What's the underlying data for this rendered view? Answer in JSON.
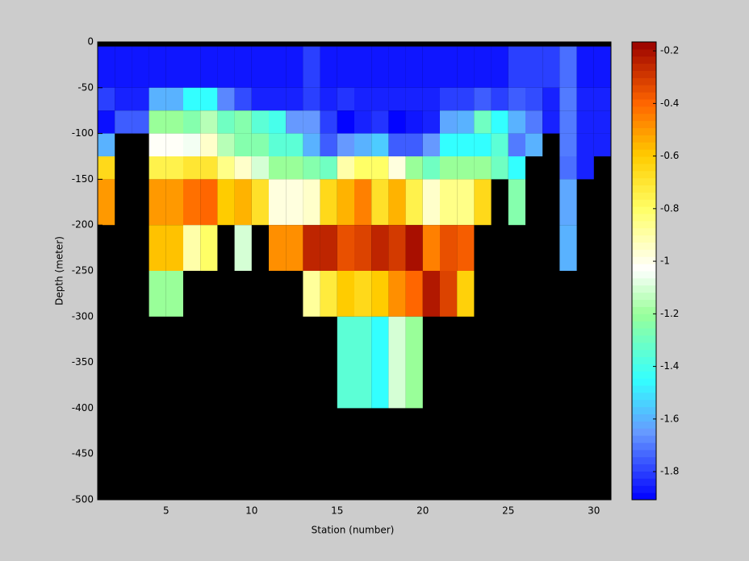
{
  "chart_data": {
    "type": "pcolor",
    "xlabel": "Station (number)",
    "ylabel": "Depth (meter)",
    "x": [
      1,
      2,
      3,
      4,
      5,
      6,
      7,
      8,
      9,
      10,
      11,
      12,
      13,
      14,
      15,
      16,
      17,
      18,
      19,
      20,
      21,
      22,
      23,
      24,
      25,
      26,
      27,
      28,
      29,
      30,
      31
    ],
    "y": [
      0,
      -5,
      -50,
      -75,
      -100,
      -125,
      -150,
      -200,
      -250,
      -300,
      -400,
      -500
    ],
    "values": [
      [
        null,
        null,
        null,
        null,
        null,
        null,
        null,
        null,
        null,
        null,
        null,
        null,
        null,
        null,
        null,
        null,
        null,
        null,
        null,
        null,
        null,
        null,
        null,
        null,
        null,
        null,
        null,
        null,
        null,
        null
      ],
      [
        -1.87,
        -1.87,
        -1.87,
        -1.87,
        -1.87,
        -1.87,
        -1.87,
        -1.87,
        -1.87,
        -1.87,
        -1.87,
        -1.87,
        -1.8,
        -1.87,
        -1.87,
        -1.87,
        -1.87,
        -1.87,
        -1.87,
        -1.87,
        -1.87,
        -1.87,
        -1.87,
        -1.87,
        -1.8,
        -1.8,
        -1.8,
        -1.72,
        -1.87,
        -1.87
      ],
      [
        -1.8,
        -1.85,
        -1.85,
        -1.6,
        -1.6,
        -1.45,
        -1.45,
        -1.68,
        -1.78,
        -1.85,
        -1.85,
        -1.85,
        -1.8,
        -1.85,
        -1.82,
        -1.85,
        -1.85,
        -1.85,
        -1.85,
        -1.85,
        -1.8,
        -1.8,
        -1.75,
        -1.8,
        -1.75,
        -1.78,
        -1.85,
        -1.7,
        -1.85,
        -1.85
      ],
      [
        -1.88,
        -1.75,
        -1.75,
        -1.2,
        -1.2,
        -1.25,
        -1.15,
        -1.3,
        -1.25,
        -1.35,
        -1.4,
        -1.65,
        -1.65,
        -1.8,
        -1.9,
        -1.85,
        -1.82,
        -1.9,
        -1.87,
        -1.85,
        -1.62,
        -1.6,
        -1.3,
        -1.45,
        -1.6,
        -1.7,
        -1.85,
        -1.7,
        -1.85,
        -1.85
      ],
      [
        -1.6,
        null,
        null,
        -1.02,
        -1.02,
        -1.05,
        -0.95,
        -1.15,
        -1.25,
        -1.25,
        -1.35,
        -1.35,
        -1.6,
        -1.75,
        -1.65,
        -1.6,
        -1.55,
        -1.75,
        -1.75,
        -1.65,
        -1.45,
        -1.45,
        -1.45,
        -1.35,
        -1.7,
        -1.6,
        null,
        -1.7,
        -1.85,
        -1.85
      ],
      [
        -0.65,
        null,
        null,
        -0.75,
        -0.75,
        -0.7,
        -0.7,
        -0.85,
        -0.95,
        -1.1,
        -1.2,
        -1.2,
        -1.25,
        -1.3,
        -0.9,
        -0.8,
        -0.8,
        -0.98,
        -1.2,
        -1.3,
        -1.2,
        -1.2,
        -1.2,
        -1.3,
        -1.45,
        null,
        null,
        -1.72,
        -1.85,
        null
      ],
      [
        -0.5,
        null,
        null,
        -0.5,
        -0.5,
        -0.42,
        -0.4,
        -0.6,
        -0.55,
        -0.68,
        -0.98,
        -0.98,
        -0.95,
        -0.65,
        -0.55,
        -0.45,
        -0.68,
        -0.55,
        -0.75,
        -0.95,
        -0.85,
        -0.85,
        -0.65,
        null,
        -1.25,
        null,
        null,
        -1.62,
        null,
        null
      ],
      [
        null,
        null,
        null,
        -0.58,
        -0.58,
        -0.9,
        -0.8,
        null,
        -1.1,
        null,
        -0.48,
        -0.48,
        -0.25,
        -0.25,
        -0.35,
        -0.32,
        -0.25,
        -0.3,
        -0.2,
        -0.45,
        -0.35,
        -0.38,
        null,
        null,
        null,
        null,
        null,
        -1.6,
        null,
        null
      ],
      [
        null,
        null,
        null,
        -1.2,
        -1.2,
        null,
        null,
        null,
        null,
        null,
        null,
        null,
        -0.88,
        -0.72,
        -0.6,
        -0.65,
        -0.6,
        -0.48,
        -0.4,
        -0.22,
        -0.32,
        -0.62,
        null,
        null,
        null,
        null,
        null,
        null,
        null,
        null
      ],
      [
        null,
        null,
        null,
        null,
        null,
        null,
        null,
        null,
        null,
        null,
        null,
        null,
        null,
        null,
        -1.35,
        -1.35,
        -1.45,
        -1.1,
        -1.2,
        null,
        null,
        null,
        null,
        null,
        null,
        null,
        null,
        null,
        null,
        null
      ],
      [
        null,
        null,
        null,
        null,
        null,
        null,
        null,
        null,
        null,
        null,
        null,
        null,
        null,
        null,
        null,
        null,
        null,
        null,
        null,
        null,
        null,
        null,
        null,
        null,
        null,
        null,
        null,
        null,
        null,
        null
      ]
    ],
    "xlim": [
      1,
      31
    ],
    "ylim": [
      -500,
      0
    ],
    "xticks": [
      5,
      10,
      15,
      20,
      25,
      30
    ],
    "yticks": [
      0,
      -50,
      -100,
      -150,
      -200,
      -250,
      -300,
      -350,
      -400,
      -450,
      -500
    ],
    "clim": [
      -1.907,
      -0.166
    ],
    "colorbar_ticks": [
      -1.8,
      -1.6,
      -1.4,
      -1.2,
      -1,
      -0.8,
      -0.6,
      -0.4,
      -0.2
    ],
    "colormap": [
      [
        -1.907,
        "#0000ff"
      ],
      [
        -1.65,
        "#6699ff"
      ],
      [
        -1.45,
        "#33ffff"
      ],
      [
        -1.2,
        "#99ff99"
      ],
      [
        -1.03,
        "#ffffff"
      ],
      [
        -0.8,
        "#ffff66"
      ],
      [
        -0.6,
        "#ffcc00"
      ],
      [
        -0.4,
        "#ff6600"
      ],
      [
        -0.166,
        "#990000"
      ]
    ],
    "missing_color": "#000000"
  }
}
